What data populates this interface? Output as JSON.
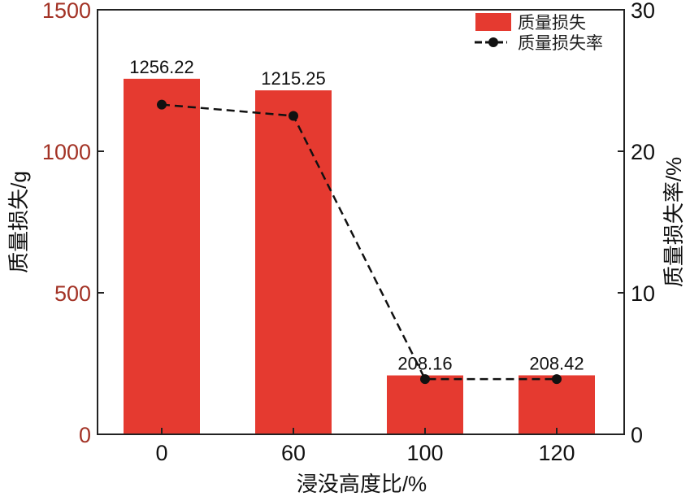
{
  "chart_data": {
    "type": "bar",
    "categories": [
      "0",
      "60",
      "100",
      "120"
    ],
    "xlabel": "浸没高度比/%",
    "ylabel": "质量损失/g",
    "y2label": "质量损失率/%",
    "ylim": [
      0,
      1500
    ],
    "y2lim": [
      0,
      30
    ],
    "yticks": [
      "0",
      "500",
      "1000",
      "1500"
    ],
    "y2ticks": [
      "0",
      "10",
      "20",
      "30"
    ],
    "grid": false,
    "legend_position": "top-right",
    "series": [
      {
        "name": "质量损失",
        "type": "bar",
        "axis": "left",
        "color": "#e53a30",
        "values": [
          1256.22,
          1215.25,
          208.16,
          208.42
        ],
        "labels": [
          "1256.22",
          "1215.25",
          "208.16",
          "208.42"
        ]
      },
      {
        "name": "质量损失率",
        "type": "line",
        "axis": "right",
        "color": "#111111",
        "style": "dashed",
        "marker": "circle",
        "values": [
          23.3,
          22.5,
          3.9,
          3.9
        ]
      }
    ],
    "left_axis_color": "#a33326"
  }
}
